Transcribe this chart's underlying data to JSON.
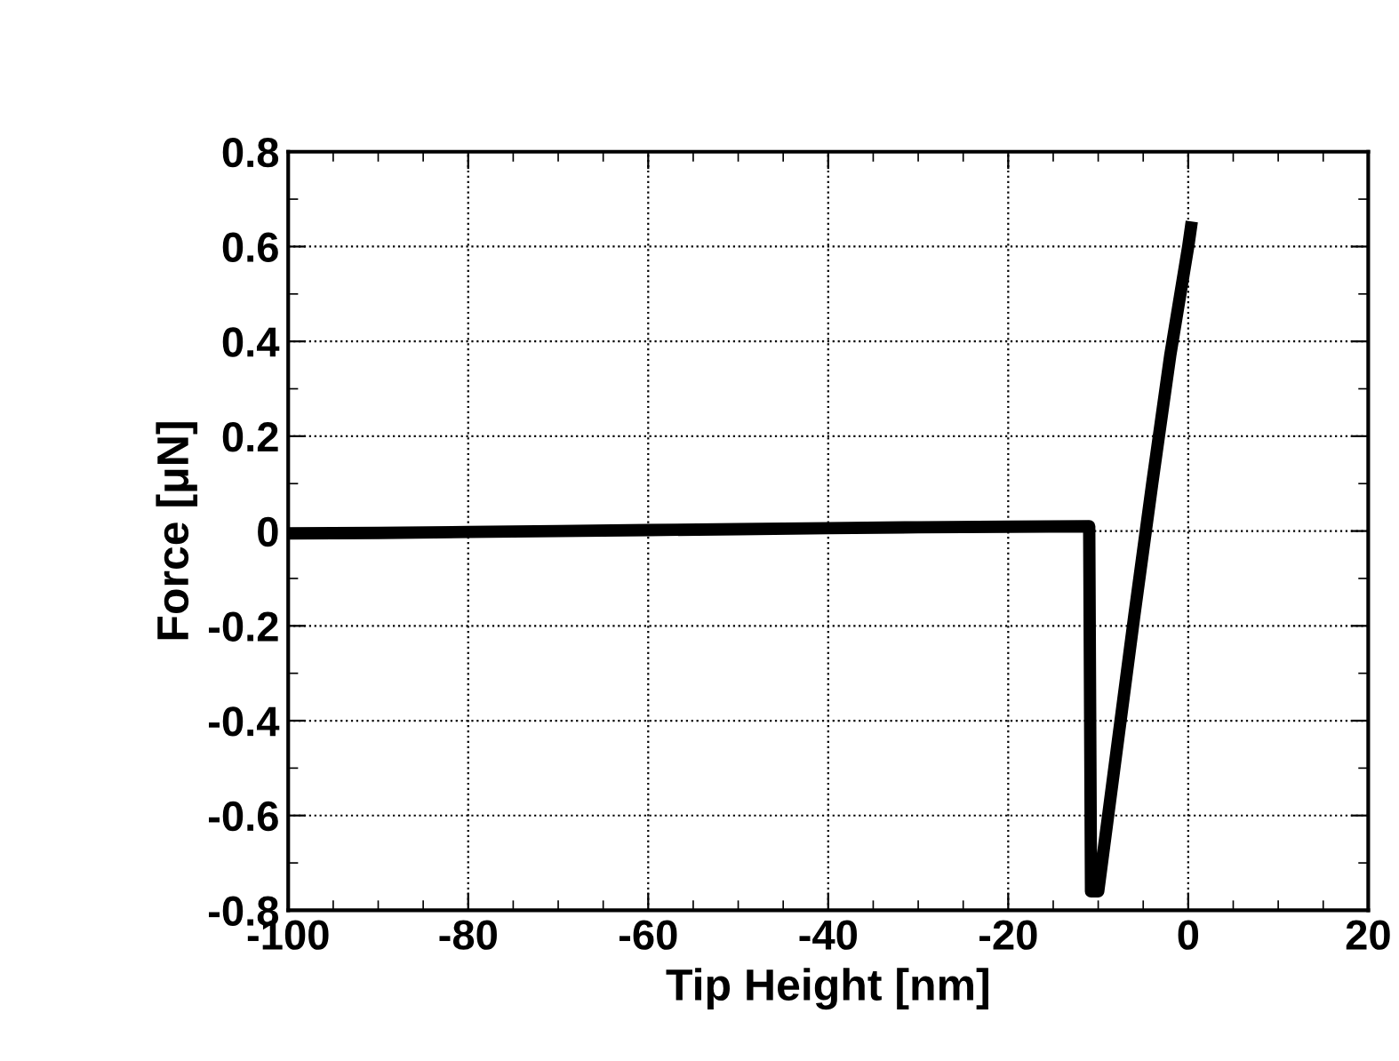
{
  "chart_data": {
    "type": "line",
    "xlabel": "Tip Height [nm]",
    "ylabel": "Force [μN]",
    "x": [
      -100,
      -90,
      -80,
      -70,
      -60,
      -50,
      -40,
      -30,
      -20,
      -11,
      -10.8,
      -10,
      -8,
      -6,
      -4,
      -2,
      0,
      0.3
    ],
    "series": [
      {
        "color": "#000000",
        "values": [
          -0.005,
          -0.004,
          -0.002,
          0,
          0.002,
          0.004,
          0.006,
          0.008,
          0.009,
          0.01,
          -0.76,
          -0.76,
          -0.47,
          -0.18,
          0.1,
          0.37,
          0.6,
          0.64
        ]
      }
    ],
    "xlim": [
      -100,
      20
    ],
    "xticks": [
      -100,
      -80,
      -60,
      -40,
      -20,
      0,
      20
    ],
    "ylim": [
      -0.8,
      0.8
    ],
    "yticks": [
      -0.8,
      -0.6,
      -0.4,
      -0.2,
      0,
      0.2,
      0.4,
      0.6,
      0.8
    ],
    "grid": true,
    "line_style": "solid"
  }
}
